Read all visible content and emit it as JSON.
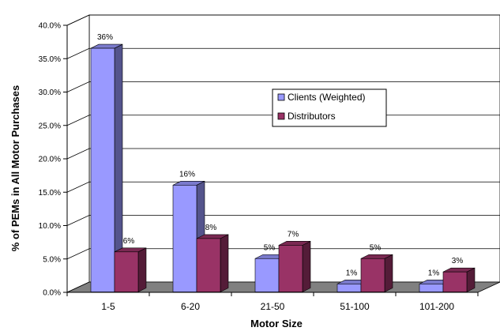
{
  "chart_data": {
    "type": "bar",
    "title": "",
    "xlabel": "Motor Size",
    "ylabel": "% of PEMs in All Motor Purchases",
    "categories": [
      "1-5",
      "6-20",
      "21-50",
      "51-100",
      "101-200"
    ],
    "series": [
      {
        "name": "Clients (Weighted)",
        "values": [
          36.5,
          16.0,
          5.0,
          1.2,
          1.2
        ],
        "labels": [
          "36%",
          "16%",
          "5%",
          "1%",
          "1%"
        ],
        "color": "#9999ff"
      },
      {
        "name": "Distributors",
        "values": [
          6.0,
          8.0,
          7.0,
          5.0,
          3.0
        ],
        "labels": [
          "6%",
          "8%",
          "7%",
          "5%",
          "3%"
        ],
        "color": "#993366"
      }
    ],
    "ylim": [
      0,
      40
    ],
    "yticks": [
      "0.0%",
      "5.0%",
      "10.0%",
      "15.0%",
      "20.0%",
      "25.0%",
      "30.0%",
      "35.0%",
      "40.0%"
    ],
    "grid": true,
    "style": "3d-clustered-column",
    "legend_position": "center-right",
    "colors": {
      "floor": "#808080",
      "gridline": "#000000"
    }
  }
}
